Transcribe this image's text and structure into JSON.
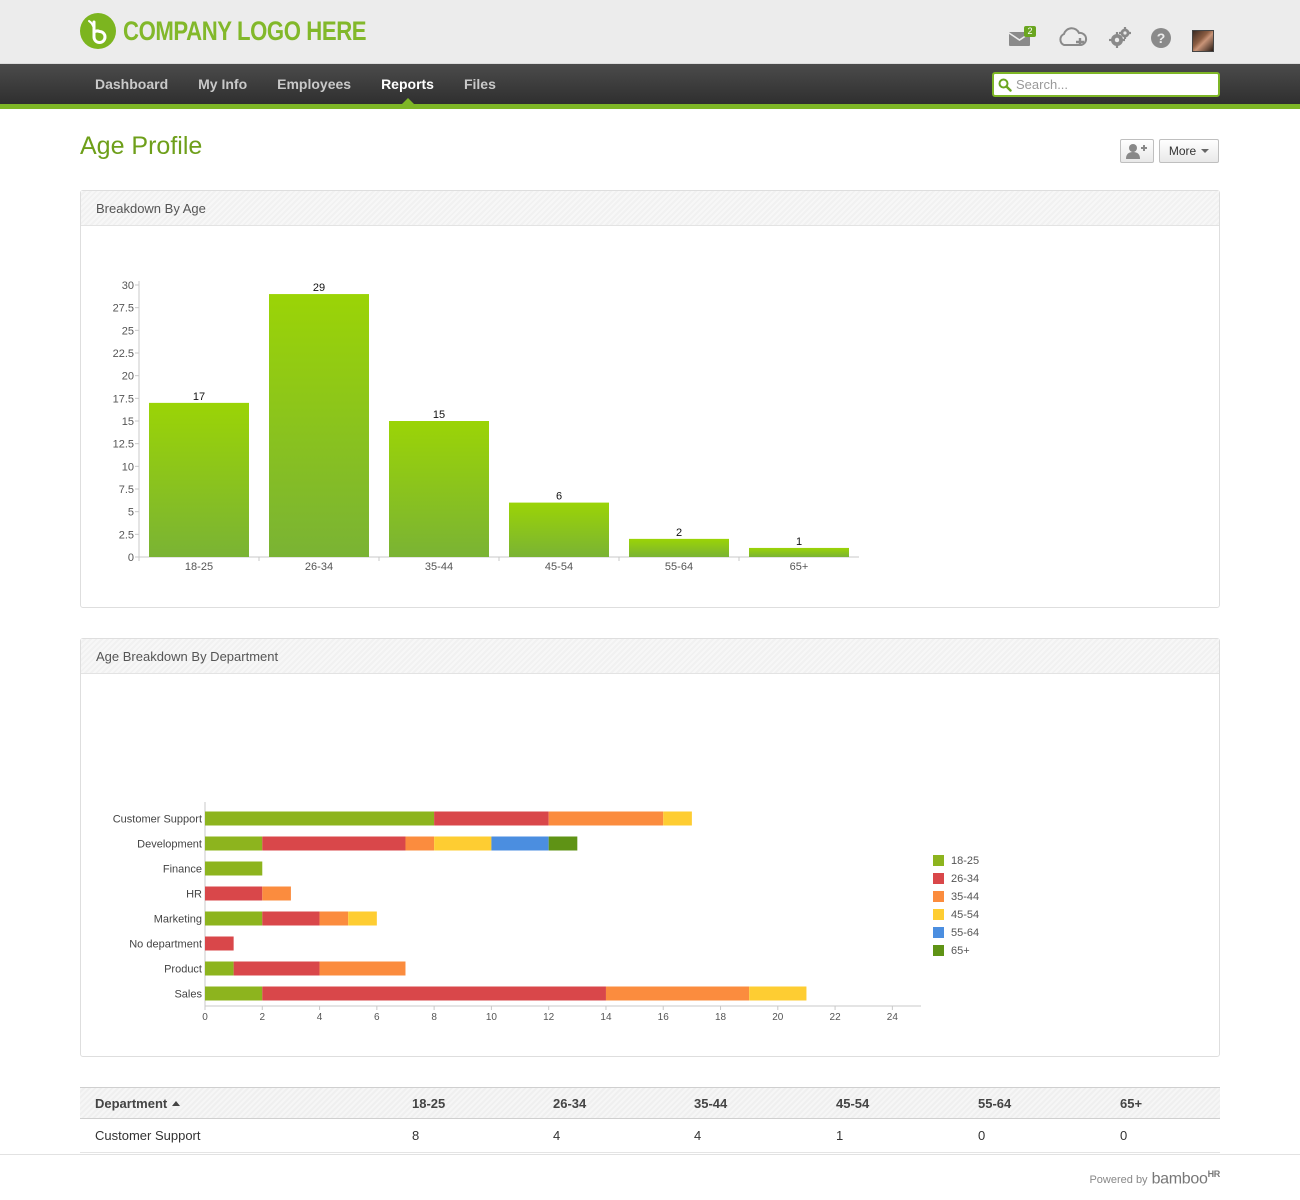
{
  "header": {
    "logo_text": "COMPANY LOGO HERE",
    "mail_badge": "2"
  },
  "nav": {
    "items": [
      {
        "label": "Dashboard"
      },
      {
        "label": "My Info"
      },
      {
        "label": "Employees"
      },
      {
        "label": "Reports"
      },
      {
        "label": "Files"
      }
    ],
    "active": "Reports",
    "search_placeholder": "Search..."
  },
  "page": {
    "title": "Age Profile",
    "more_label": "More"
  },
  "panels": {
    "age_title": "Breakdown By Age",
    "dept_title": "Age Breakdown By Department"
  },
  "chart_data": [
    {
      "type": "bar",
      "title": "Breakdown By Age",
      "categories": [
        "18-25",
        "26-34",
        "35-44",
        "45-54",
        "55-64",
        "65+"
      ],
      "values": [
        17,
        29,
        15,
        6,
        2,
        1
      ],
      "ylim": [
        0,
        30
      ],
      "yticks": [
        "0",
        "2.5",
        "5",
        "7.5",
        "10",
        "12.5",
        "15",
        "17.5",
        "20",
        "22.5",
        "25",
        "27.5",
        "30"
      ],
      "grid": false,
      "data_labels": true
    },
    {
      "type": "bar",
      "orientation": "horizontal",
      "stacked": true,
      "title": "Age Breakdown By Department",
      "categories": [
        "Customer Support",
        "Development",
        "Finance",
        "HR",
        "Marketing",
        "No department",
        "Product",
        "Sales"
      ],
      "series": [
        {
          "name": "18-25",
          "color": "#8db41e",
          "values": [
            8,
            2,
            2,
            0,
            2,
            0,
            1,
            2
          ]
        },
        {
          "name": "26-34",
          "color": "#d9474a",
          "values": [
            4,
            5,
            0,
            2,
            2,
            1,
            3,
            12
          ]
        },
        {
          "name": "35-44",
          "color": "#fb8c3e",
          "values": [
            4,
            1,
            0,
            1,
            1,
            0,
            3,
            5
          ]
        },
        {
          "name": "45-54",
          "color": "#fecd32",
          "values": [
            1,
            2,
            0,
            0,
            1,
            0,
            0,
            2
          ]
        },
        {
          "name": "55-64",
          "color": "#4b8ee0",
          "values": [
            0,
            2,
            0,
            0,
            0,
            0,
            0,
            0
          ]
        },
        {
          "name": "65+",
          "color": "#5f9315",
          "values": [
            0,
            1,
            0,
            0,
            0,
            0,
            0,
            0
          ]
        }
      ],
      "xlim": [
        0,
        25
      ],
      "xticks": [
        "0",
        "2",
        "4",
        "6",
        "8",
        "10",
        "12",
        "14",
        "16",
        "18",
        "20",
        "22",
        "24"
      ],
      "legend_position": "right",
      "grid": false
    }
  ],
  "table": {
    "headers": [
      "Department",
      "18-25",
      "26-34",
      "35-44",
      "45-54",
      "55-64",
      "65+"
    ],
    "rows": [
      [
        "Customer Support",
        "8",
        "4",
        "4",
        "1",
        "0",
        "0"
      ]
    ]
  },
  "footer": {
    "powered_by": "Powered by",
    "brand": "bamboo",
    "brand_suffix": "HR"
  }
}
